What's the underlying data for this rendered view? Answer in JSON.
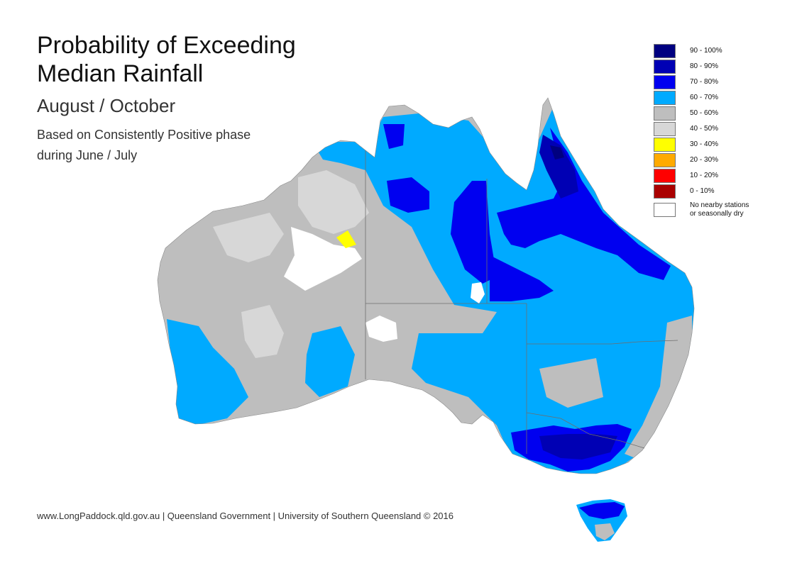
{
  "title": {
    "line1": "Probability of Exceeding",
    "line2": "Median Rainfall",
    "period": "August / October",
    "note_line1": "Based on Consistently Positive phase",
    "note_line2": "during June / July"
  },
  "legend": [
    {
      "label": "90 - 100%",
      "color": "#000080"
    },
    {
      "label": "80 - 90%",
      "color": "#0000b4"
    },
    {
      "label": "70 - 80%",
      "color": "#0000f0"
    },
    {
      "label": "60 - 70%",
      "color": "#00aaff"
    },
    {
      "label": "50 - 60%",
      "color": "#bebebe"
    },
    {
      "label": "40 - 50%",
      "color": "#d7d7d7"
    },
    {
      "label": "30 - 40%",
      "color": "#ffff00"
    },
    {
      "label": "20 - 30%",
      "color": "#ffaa00"
    },
    {
      "label": "10 - 20%",
      "color": "#ff0000"
    },
    {
      "label": "0 - 10%",
      "color": "#aa0000"
    },
    {
      "label": "No nearby stations\nor seasonally dry",
      "color": "#ffffff"
    }
  ],
  "footer": "www.LongPaddock.qld.gov.au | Queensland Government | University of Southern Queensland © 2016"
}
